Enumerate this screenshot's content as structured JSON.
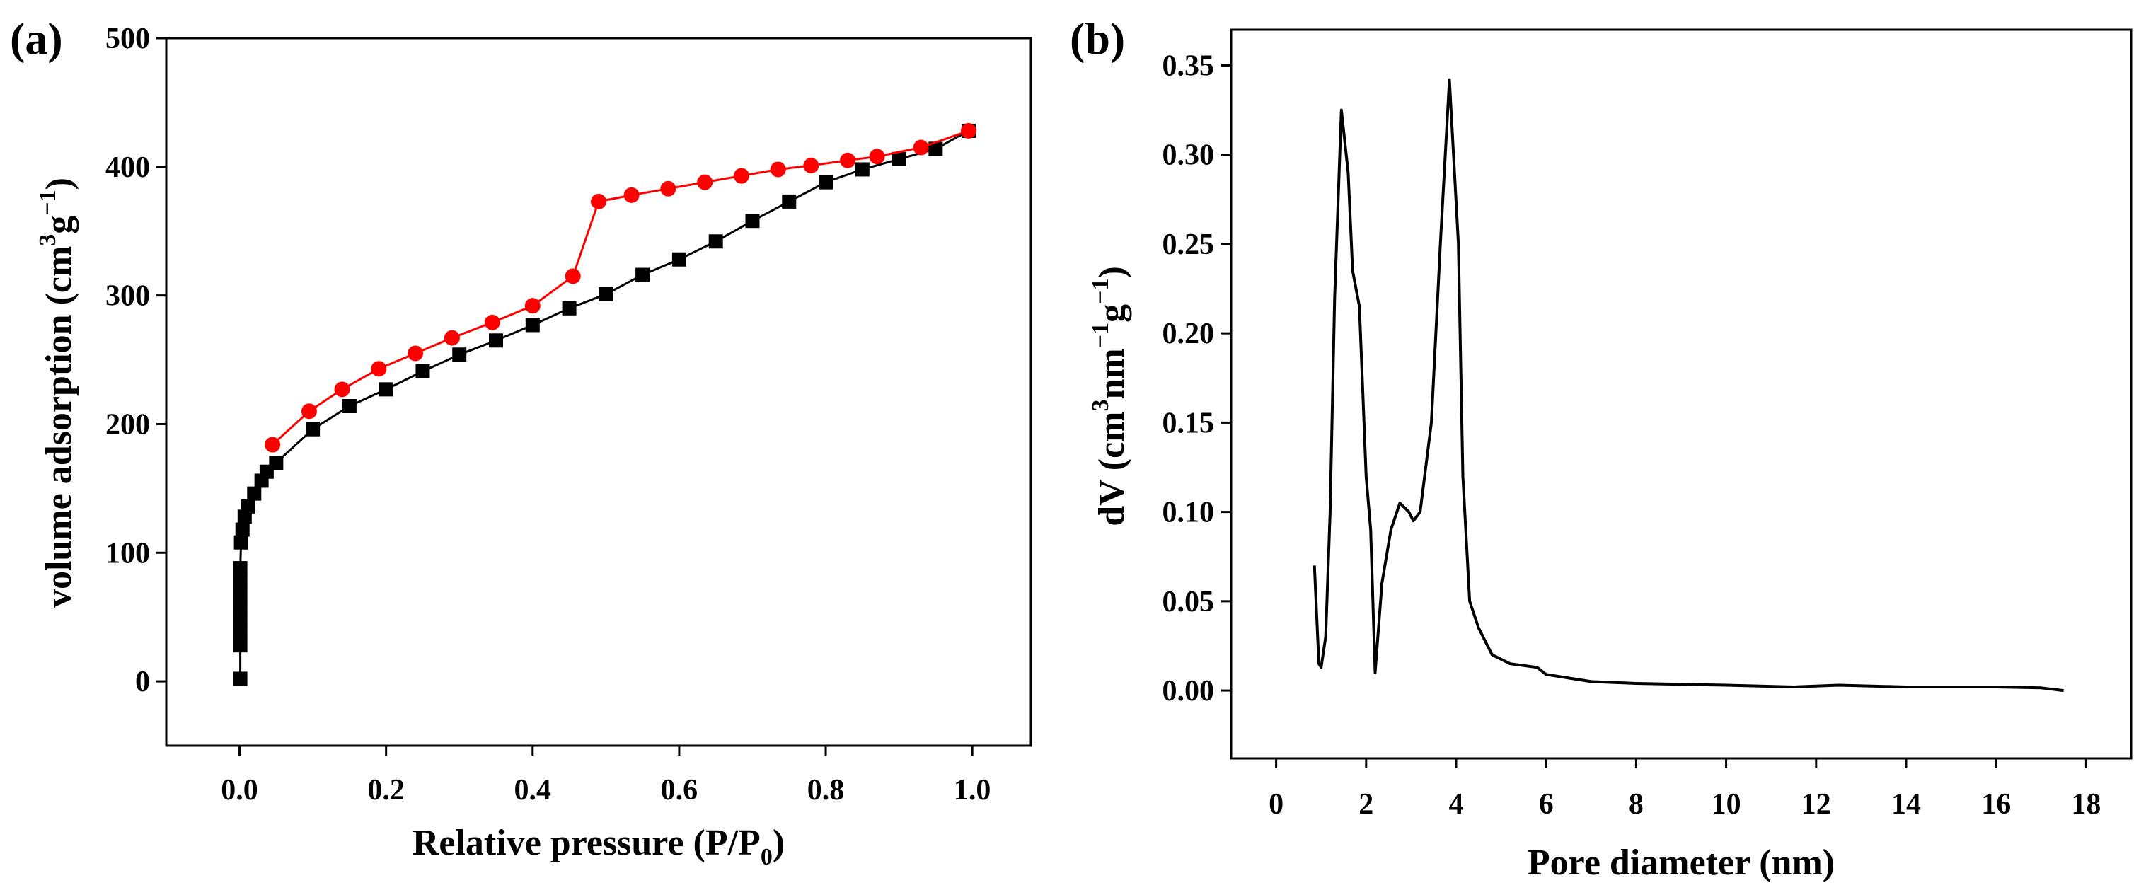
{
  "chart_data": [
    {
      "type": "line",
      "panel_label": "(a)",
      "xlabel": "Relative pressure (P/P",
      "xlabel_sub": "0",
      "xlabel_tail": ")",
      "ylabel": "volume adsorption (cm",
      "ylabel_sup1": "3",
      "ylabel_mid": "g",
      "ylabel_sup2": "−1",
      "ylabel_tail": ")",
      "xlim": [
        -0.1,
        1.08
      ],
      "ylim": [
        -50,
        500
      ],
      "xticks": [
        0.0,
        0.2,
        0.4,
        0.6,
        0.8,
        1.0
      ],
      "xtick_labels": [
        "0.0",
        "0.2",
        "0.4",
        "0.6",
        "0.8",
        "1.0"
      ],
      "yticks": [
        0,
        100,
        200,
        300,
        400,
        500
      ],
      "ytick_labels": [
        "0",
        "100",
        "200",
        "300",
        "400",
        "500"
      ],
      "grid": false,
      "series": [
        {
          "marker": "square",
          "color": "#000000",
          "points": [
            [
              0.001,
              2
            ],
            [
              0.001,
              28
            ],
            [
              0.001,
              38
            ],
            [
              0.001,
              48
            ],
            [
              0.001,
              58
            ],
            [
              0.001,
              68
            ],
            [
              0.001,
              78
            ],
            [
              0.001,
              88
            ],
            [
              0.002,
              108
            ],
            [
              0.004,
              118
            ],
            [
              0.007,
              128
            ],
            [
              0.012,
              136
            ],
            [
              0.02,
              146
            ],
            [
              0.03,
              156
            ],
            [
              0.037,
              163
            ],
            [
              0.05,
              170
            ],
            [
              0.1,
              196
            ],
            [
              0.15,
              214
            ],
            [
              0.2,
              227
            ],
            [
              0.25,
              241
            ],
            [
              0.3,
              254
            ],
            [
              0.35,
              265
            ],
            [
              0.4,
              277
            ],
            [
              0.45,
              290
            ],
            [
              0.5,
              301
            ],
            [
              0.55,
              316
            ],
            [
              0.6,
              328
            ],
            [
              0.65,
              342
            ],
            [
              0.7,
              358
            ],
            [
              0.75,
              373
            ],
            [
              0.8,
              388
            ],
            [
              0.85,
              398
            ],
            [
              0.9,
              406
            ],
            [
              0.95,
              414
            ],
            [
              0.995,
              428
            ]
          ]
        },
        {
          "marker": "circle",
          "color": "#ff0000",
          "points": [
            [
              0.995,
              428
            ],
            [
              0.93,
              415
            ],
            [
              0.87,
              408
            ],
            [
              0.83,
              405
            ],
            [
              0.78,
              401
            ],
            [
              0.735,
              398
            ],
            [
              0.685,
              393
            ],
            [
              0.635,
              388
            ],
            [
              0.585,
              383
            ],
            [
              0.535,
              378
            ],
            [
              0.49,
              373
            ],
            [
              0.455,
              315
            ],
            [
              0.4,
              292
            ],
            [
              0.345,
              279
            ],
            [
              0.29,
              267
            ],
            [
              0.24,
              255
            ],
            [
              0.19,
              243
            ],
            [
              0.14,
              227
            ],
            [
              0.095,
              210
            ],
            [
              0.045,
              184
            ]
          ]
        }
      ]
    },
    {
      "type": "line",
      "panel_label": "(b)",
      "xlabel": "Pore diameter (nm)",
      "ylabel": "dV (cm",
      "ylabel_sup1": "3",
      "ylabel_mid": "nm",
      "ylabel_sup2": "−1",
      "ylabel_mid2": "g",
      "ylabel_sup3": "−1",
      "ylabel_tail": ")",
      "xlim": [
        -1,
        19
      ],
      "ylim": [
        -0.038,
        0.37
      ],
      "xticks": [
        0,
        2,
        4,
        6,
        8,
        10,
        12,
        14,
        16,
        18
      ],
      "xtick_labels": [
        "0",
        "2",
        "4",
        "6",
        "8",
        "10",
        "12",
        "14",
        "16",
        "18"
      ],
      "yticks": [
        0.0,
        0.05,
        0.1,
        0.15,
        0.2,
        0.25,
        0.3,
        0.35
      ],
      "ytick_labels": [
        "0.00",
        "0.05",
        "0.10",
        "0.15",
        "0.20",
        "0.25",
        "0.30",
        "0.35"
      ],
      "grid": false,
      "series": [
        {
          "marker": "none",
          "color": "#000000",
          "points": [
            [
              0.85,
              0.07
            ],
            [
              0.95,
              0.015
            ],
            [
              1.0,
              0.013
            ],
            [
              1.1,
              0.03
            ],
            [
              1.2,
              0.1
            ],
            [
              1.3,
              0.22
            ],
            [
              1.45,
              0.325
            ],
            [
              1.6,
              0.29
            ],
            [
              1.7,
              0.235
            ],
            [
              1.85,
              0.215
            ],
            [
              2.0,
              0.12
            ],
            [
              2.1,
              0.09
            ],
            [
              2.2,
              0.01
            ],
            [
              2.35,
              0.06
            ],
            [
              2.55,
              0.09
            ],
            [
              2.75,
              0.105
            ],
            [
              2.95,
              0.1
            ],
            [
              3.05,
              0.095
            ],
            [
              3.2,
              0.1
            ],
            [
              3.45,
              0.15
            ],
            [
              3.65,
              0.25
            ],
            [
              3.85,
              0.342
            ],
            [
              4.05,
              0.25
            ],
            [
              4.15,
              0.12
            ],
            [
              4.3,
              0.05
            ],
            [
              4.5,
              0.035
            ],
            [
              4.8,
              0.02
            ],
            [
              5.2,
              0.015
            ],
            [
              5.8,
              0.013
            ],
            [
              6.0,
              0.009
            ],
            [
              6.5,
              0.007
            ],
            [
              7.0,
              0.005
            ],
            [
              8.0,
              0.004
            ],
            [
              10.0,
              0.003
            ],
            [
              11.5,
              0.002
            ],
            [
              12.5,
              0.003
            ],
            [
              14.0,
              0.002
            ],
            [
              16.0,
              0.002
            ],
            [
              17.0,
              0.0015
            ],
            [
              17.5,
              0.0
            ]
          ]
        }
      ]
    }
  ]
}
